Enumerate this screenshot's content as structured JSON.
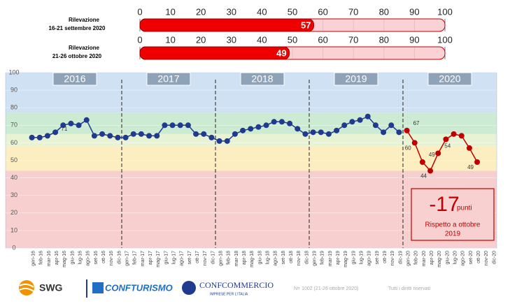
{
  "gauges": {
    "xlim": [
      0,
      100
    ],
    "ticks": [
      0,
      10,
      20,
      30,
      40,
      50,
      60,
      70,
      80,
      90,
      100
    ],
    "items": [
      {
        "title": "Rilevazione",
        "period": "16-21 settembre 2020",
        "value": 57
      },
      {
        "title": "Rilevazione",
        "period": "21-26 ottobre 2020",
        "value": 49
      }
    ]
  },
  "chart_data": {
    "type": "line",
    "categories": [
      "gen-16",
      "feb-16",
      "mar-16",
      "apr-16",
      "mag-16",
      "giu-16",
      "lug-16",
      "ago-16",
      "set-16",
      "ott-16",
      "nov-16",
      "dic-16",
      "gen-17",
      "feb-17",
      "mar-17",
      "apr-17",
      "mag-17",
      "giu-17",
      "lug-17",
      "ago-17",
      "set-17",
      "ott-17",
      "nov-17",
      "dic-17",
      "gen-18",
      "feb-18",
      "mar-18",
      "apr-18",
      "mag-18",
      "giu-18",
      "lug-18",
      "ago-18",
      "set-18",
      "ott-18",
      "nov-18",
      "dic-18",
      "gen-19",
      "feb-19",
      "mar-19",
      "apr-19",
      "mag-19",
      "giu-19",
      "lug-19",
      "ago-19",
      "set-19",
      "ott-19",
      "nov-19",
      "dic-19",
      "gen-20",
      "feb-20",
      "mar-20",
      "apr-20",
      "mag-20",
      "giu-20",
      "lug-20",
      "ago-20",
      "set-20",
      "ott-20",
      "nov-20",
      "dic-20"
    ],
    "years": [
      "2016",
      "2017",
      "2018",
      "2019",
      "2020"
    ],
    "ylim": [
      0,
      100
    ],
    "yticks": [
      0,
      10,
      20,
      30,
      40,
      50,
      60,
      70,
      80,
      90,
      100
    ],
    "bands": [
      {
        "from": 0,
        "to": 44,
        "color": "#f8cfcf"
      },
      {
        "from": 44,
        "to": 58,
        "color": "#fdeec2"
      },
      {
        "from": 58,
        "to": 65,
        "color": "#e8f3d3"
      },
      {
        "from": 65,
        "to": 77,
        "color": "#cdebd2"
      },
      {
        "from": 77,
        "to": 100,
        "color": "#cfe1f2"
      }
    ],
    "series": [
      {
        "color": "#1f3a8f",
        "values": [
          63,
          63,
          64,
          66,
          70,
          71,
          70,
          73,
          64,
          65,
          64,
          63,
          63,
          65,
          65,
          64,
          64,
          70,
          70,
          70,
          70,
          65,
          65,
          63,
          61,
          61,
          65,
          67,
          68,
          69,
          70,
          72,
          72,
          71,
          68,
          65,
          66,
          66,
          65,
          67,
          70,
          72,
          73,
          75,
          70,
          66,
          70,
          66,
          null,
          null,
          null,
          null,
          null,
          null,
          null,
          null,
          null,
          null,
          null,
          null
        ],
        "value_labels": [
          null,
          null,
          null,
          null,
          null,
          "71",
          null,
          null,
          null,
          null,
          null,
          null,
          null,
          null,
          null,
          null,
          null,
          null,
          null,
          null,
          null,
          null,
          null,
          null,
          null,
          null,
          null,
          null,
          null,
          null,
          null,
          null,
          null,
          null,
          null,
          null,
          null,
          null,
          null,
          null,
          null,
          null,
          null,
          null,
          null,
          null,
          null,
          null,
          null,
          null,
          null,
          null,
          null,
          null,
          null,
          null,
          null,
          null,
          null,
          null
        ]
      },
      {
        "color": "#c00000",
        "values": [
          null,
          null,
          null,
          null,
          null,
          null,
          null,
          null,
          null,
          null,
          null,
          null,
          null,
          null,
          null,
          null,
          null,
          null,
          null,
          null,
          null,
          null,
          null,
          null,
          null,
          null,
          null,
          null,
          null,
          null,
          null,
          null,
          null,
          null,
          null,
          null,
          null,
          null,
          null,
          null,
          null,
          null,
          null,
          null,
          null,
          null,
          null,
          null,
          67,
          60,
          49,
          44,
          54,
          62,
          65,
          64,
          57,
          49,
          null,
          null
        ],
        "value_labels": [
          null,
          null,
          null,
          null,
          null,
          null,
          null,
          null,
          null,
          null,
          null,
          null,
          null,
          null,
          null,
          null,
          null,
          null,
          null,
          null,
          null,
          null,
          null,
          null,
          null,
          null,
          null,
          null,
          null,
          null,
          null,
          null,
          null,
          null,
          null,
          null,
          null,
          null,
          null,
          null,
          null,
          null,
          null,
          null,
          null,
          null,
          null,
          null,
          "67",
          "60",
          "49",
          "44",
          "54",
          null,
          null,
          null,
          null,
          "49",
          null,
          null
        ]
      }
    ],
    "annotation": {
      "value": "-17",
      "unit": "punti",
      "line1": "Rispetto  a ottobre",
      "line2": "2019"
    }
  },
  "footer": {
    "swg": "SWG",
    "confturismo": "CONFTURISMO",
    "confcommercio": "CONFCOMMERCIO",
    "confcommercio_sub": "IMPRESE PER L'ITALIA",
    "sample": "N= 1002 (21-26 ottobre 2020)",
    "rights": "Tutti i diritti riservati"
  }
}
